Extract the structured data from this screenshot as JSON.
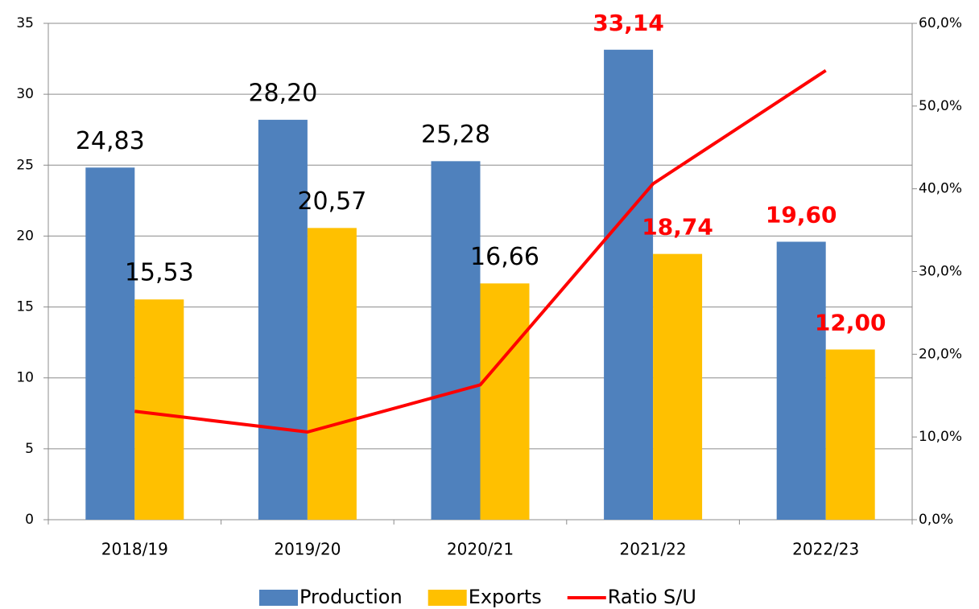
{
  "chart_data": {
    "type": "bar",
    "categories": [
      "2018/19",
      "2019/20",
      "2020/21",
      "2021/22",
      "2022/23"
    ],
    "series": [
      {
        "name": "Production",
        "type": "bar",
        "color": "#4f81bd",
        "values": [
          24.83,
          28.2,
          25.28,
          33.14,
          19.6
        ],
        "value_labels": [
          "24,83",
          "28,20",
          "25,28",
          "33,14",
          "19,60"
        ],
        "value_label_colors": [
          "#000000",
          "#000000",
          "#000000",
          "#ff0000",
          "#ff0000"
        ]
      },
      {
        "name": "Exports",
        "type": "bar",
        "color": "#ffc000",
        "values": [
          15.53,
          20.57,
          16.66,
          18.74,
          12.0
        ],
        "value_labels": [
          "15,53",
          "20,57",
          "16,66",
          "18,74",
          "12,00"
        ],
        "value_label_colors": [
          "#000000",
          "#000000",
          "#000000",
          "#ff0000",
          "#ff0000"
        ]
      },
      {
        "name": "Ratio S/U",
        "type": "line",
        "axis": "y2",
        "color": "#ff0000",
        "values": [
          13.1,
          10.6,
          16.3,
          40.6,
          54.3
        ]
      }
    ],
    "ylim": [
      0,
      35
    ],
    "yticks": [
      0,
      5,
      10,
      15,
      20,
      25,
      30,
      35
    ],
    "y2lim": [
      0,
      60
    ],
    "y2ticks": [
      {
        "value": 0,
        "label": "0,0%"
      },
      {
        "value": 10,
        "label": "10,0%"
      },
      {
        "value": 20,
        "label": "20,0%"
      },
      {
        "value": 30,
        "label": "30,0%"
      },
      {
        "value": 40,
        "label": "40,0%"
      },
      {
        "value": 50,
        "label": "50,0%"
      },
      {
        "value": 60,
        "label": "60,0%"
      }
    ],
    "grid": true,
    "legend": "bottom"
  }
}
